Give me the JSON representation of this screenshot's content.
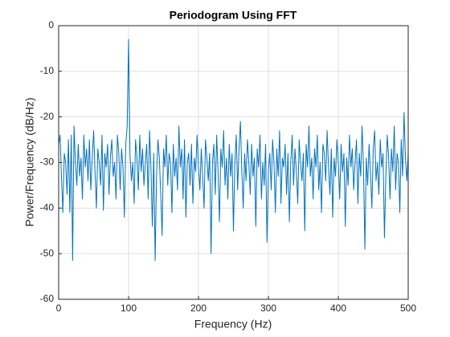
{
  "chart_data": {
    "type": "line",
    "title": "Periodogram Using FFT",
    "x_label": "Frequency (Hz)",
    "y_label": "Power/Frequency (dB/Hz)",
    "xlim": [
      0,
      500
    ],
    "ylim": [
      -60,
      0
    ],
    "xticks": [
      0,
      100,
      200,
      300,
      400,
      500
    ],
    "yticks": [
      -60,
      -50,
      -40,
      -30,
      -20,
      -10,
      0
    ],
    "grid": true,
    "x": [
      0,
      2,
      4,
      6,
      8,
      10,
      12,
      14,
      16,
      18,
      20,
      22,
      24,
      26,
      28,
      30,
      32,
      34,
      36,
      38,
      40,
      42,
      44,
      46,
      48,
      50,
      52,
      54,
      56,
      58,
      60,
      62,
      64,
      66,
      68,
      70,
      72,
      74,
      76,
      78,
      80,
      82,
      84,
      86,
      88,
      90,
      92,
      94,
      96,
      98,
      100,
      102,
      104,
      106,
      108,
      110,
      112,
      114,
      116,
      118,
      120,
      122,
      124,
      126,
      128,
      130,
      132,
      134,
      136,
      138,
      140,
      142,
      144,
      146,
      148,
      150,
      152,
      154,
      156,
      158,
      160,
      162,
      164,
      166,
      168,
      170,
      172,
      174,
      176,
      178,
      180,
      182,
      184,
      186,
      188,
      190,
      192,
      194,
      196,
      198,
      200,
      202,
      204,
      206,
      208,
      210,
      212,
      214,
      216,
      218,
      220,
      222,
      224,
      226,
      228,
      230,
      232,
      234,
      236,
      238,
      240,
      242,
      244,
      246,
      248,
      250,
      252,
      254,
      256,
      258,
      260,
      262,
      264,
      266,
      268,
      270,
      272,
      274,
      276,
      278,
      280,
      282,
      284,
      286,
      288,
      290,
      292,
      294,
      296,
      298,
      300,
      302,
      304,
      306,
      308,
      310,
      312,
      314,
      316,
      318,
      320,
      322,
      324,
      326,
      328,
      330,
      332,
      334,
      336,
      338,
      340,
      342,
      344,
      346,
      348,
      350,
      352,
      354,
      356,
      358,
      360,
      362,
      364,
      366,
      368,
      370,
      372,
      374,
      376,
      378,
      380,
      382,
      384,
      386,
      388,
      390,
      392,
      394,
      396,
      398,
      400,
      402,
      404,
      406,
      408,
      410,
      412,
      414,
      416,
      418,
      420,
      422,
      424,
      426,
      428,
      430,
      432,
      434,
      436,
      438,
      440,
      442,
      444,
      446,
      448,
      450,
      452,
      454,
      456,
      458,
      460,
      462,
      464,
      466,
      468,
      470,
      472,
      474,
      476,
      478,
      480,
      482,
      484,
      486,
      488,
      490,
      492,
      494,
      496,
      498,
      500
    ],
    "series": [
      {
        "name": "Periodogram",
        "color": "#0072bd",
        "values": [
          -26,
          -24,
          -33,
          -41,
          -28,
          -30,
          -37,
          -25,
          -41,
          -24,
          -51.5,
          -22,
          -30,
          -35,
          -26,
          -33,
          -29,
          -38,
          -24,
          -31,
          -27,
          -34,
          -25,
          -36,
          -29,
          -23,
          -32,
          -40,
          -27,
          -30,
          -35,
          -24,
          -40.5,
          -28,
          -31,
          -26,
          -37,
          -29,
          -25,
          -33,
          -30,
          -38,
          -24,
          -28,
          -36,
          -27,
          -31,
          -42,
          -26,
          -22,
          -3,
          -28,
          -34,
          -30,
          -39,
          -25,
          -29,
          -36,
          -24,
          -32,
          -27,
          -35,
          -30,
          -26,
          -38,
          -23,
          -31,
          -44,
          -28,
          -51.5,
          -33,
          -25,
          -29,
          -37,
          -46,
          -27,
          -31,
          -24,
          -35,
          -28,
          -30,
          -41,
          -26,
          -33,
          -29,
          -36,
          -22,
          -31,
          -27,
          -38,
          -25,
          -42,
          -30,
          -28,
          -35,
          -26,
          -39,
          -29,
          -32,
          -24,
          -31,
          -36,
          -27,
          -33,
          -40,
          -25,
          -29,
          -34,
          -28,
          -50,
          -30,
          -26,
          -37,
          -24,
          -32,
          -43,
          -27,
          -31,
          -23,
          -35,
          -29,
          -38,
          -26,
          -33,
          -28,
          -45,
          -30,
          -24,
          -36,
          -27,
          -21,
          -32,
          -40,
          -28,
          -34,
          -25,
          -30,
          -37,
          -26,
          -33,
          -29,
          -44,
          -27,
          -31,
          -24,
          -38,
          -30,
          -35,
          -26,
          -47.5,
          -32,
          -28,
          -36,
          -25,
          -30,
          -41,
          -27,
          -33,
          -23,
          -39,
          -29,
          -31,
          -26,
          -37,
          -28,
          -43,
          -30,
          -24,
          -35,
          -27,
          -32,
          -39,
          -25,
          -30,
          -34,
          -28,
          -45,
          -26,
          -31,
          -22,
          -33,
          -29,
          -38,
          -27,
          -31,
          -24,
          -36,
          -30,
          -41,
          -26,
          -28,
          -34,
          -23,
          -31,
          -37,
          -27,
          -42,
          -29,
          -33,
          -25,
          -30,
          -38,
          -26,
          -32,
          -28,
          -44,
          -29,
          -35,
          -24,
          -31,
          -27,
          -36,
          -30,
          -25,
          -39,
          -28,
          -33,
          -22,
          -31,
          -49,
          -29,
          -35,
          -26,
          -32,
          -40,
          -27,
          -23,
          -34,
          -30,
          -37,
          -25,
          -31,
          -28,
          -46.5,
          -33,
          -24,
          -29,
          -38,
          -27,
          -32,
          -22,
          -36,
          -28,
          -30,
          -41,
          -25,
          -33,
          -19,
          -29,
          -34,
          -28
        ]
      }
    ]
  }
}
